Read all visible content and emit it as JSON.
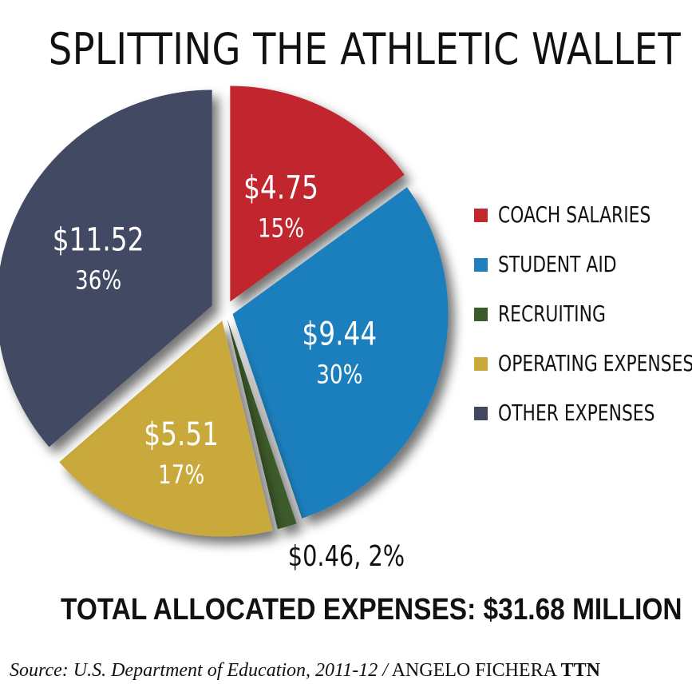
{
  "title": "SPLITTING THE ATHLETIC WALLET",
  "chart_data": {
    "type": "pie",
    "title": "SPLITTING THE ATHLETIC WALLET",
    "slices": [
      {
        "name": "COACH SALARIES",
        "value": 4.75,
        "percent": 15,
        "value_label": "$4.75",
        "percent_label": "15%",
        "color": "#c1272d"
      },
      {
        "name": "STUDENT AID",
        "value": 9.44,
        "percent": 30,
        "value_label": "$9.44",
        "percent_label": "30%",
        "color": "#1f7fbd"
      },
      {
        "name": "RECRUITING",
        "value": 0.46,
        "percent": 2,
        "value_label": "$0.46, 2%",
        "percent_label": "",
        "color": "#3d5a2a"
      },
      {
        "name": "OPERATING EXPENSES",
        "value": 5.51,
        "percent": 17,
        "value_label": "$5.51",
        "percent_label": "17%",
        "color": "#c9a93a"
      },
      {
        "name": "OTHER EXPENSES",
        "value": 11.52,
        "percent": 36,
        "value_label": "$11.52",
        "percent_label": "36%",
        "color": "#434862"
      }
    ],
    "legend_position": "right"
  },
  "legend": [
    {
      "label": "COACH SALARIES",
      "color": "#c1272d"
    },
    {
      "label": "STUDENT AID",
      "color": "#1f7fbd"
    },
    {
      "label": "RECRUITING",
      "color": "#3d5a2a"
    },
    {
      "label": "OPERATING EXPENSES",
      "color": "#c9a93a"
    },
    {
      "label": "OTHER EXPENSES",
      "color": "#434862"
    }
  ],
  "total": "TOTAL ALLOCATED EXPENSES: $31.68 MILLION",
  "source": {
    "italic": "Source: U.S. Department of Education, 2011-12 /",
    "author": " ANGELO FICHERA ",
    "outlet": "TTN"
  }
}
